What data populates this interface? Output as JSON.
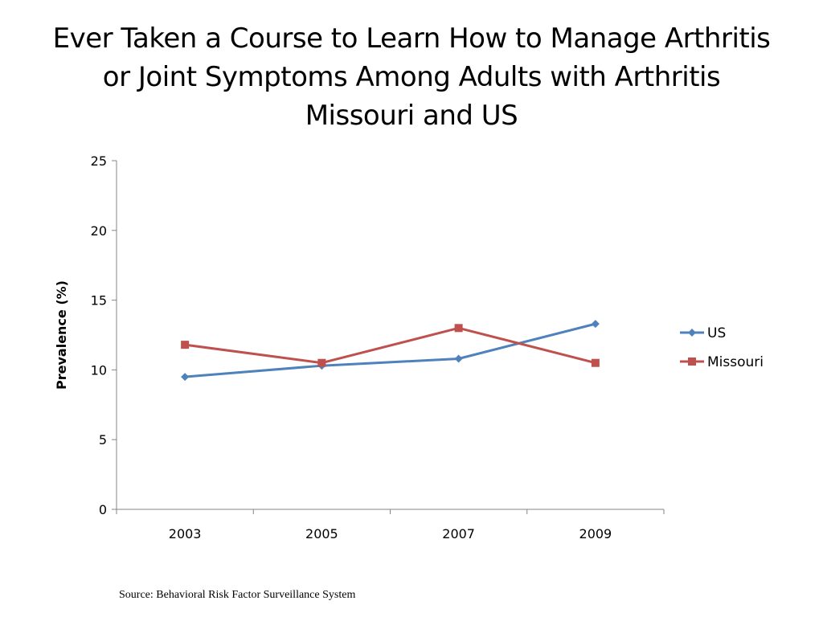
{
  "chart_data": {
    "type": "line",
    "title_lines": [
      "Ever Taken a Course to Learn How to Manage Arthritis",
      "or Joint Symptoms Among Adults with Arthritis",
      "Missouri and US"
    ],
    "xlabel": "",
    "ylabel": "Prevalence (%)",
    "categories": [
      "2003",
      "2005",
      "2007",
      "2009"
    ],
    "ylim": [
      0,
      25
    ],
    "yticks": [
      "0",
      "5",
      "10",
      "15",
      "20",
      "25"
    ],
    "grid": false,
    "legend_position": "right",
    "series": [
      {
        "name": "US",
        "values": [
          9.5,
          10.3,
          10.8,
          13.3
        ],
        "color": "#4F81BD",
        "marker": "diamond"
      },
      {
        "name": "Missouri",
        "values": [
          11.8,
          10.5,
          13.0,
          10.5
        ],
        "color": "#C0504D",
        "marker": "square"
      }
    ]
  },
  "footer": {
    "source": "Source: Behavioral Risk Factor Surveillance System"
  }
}
